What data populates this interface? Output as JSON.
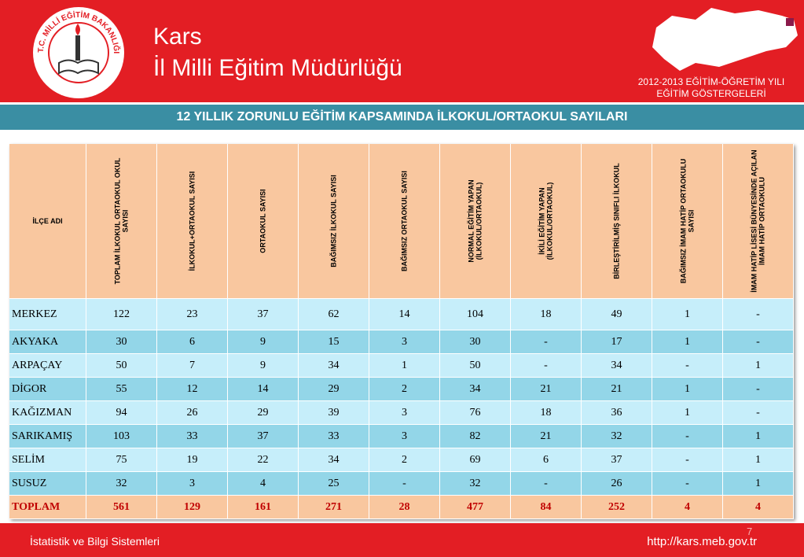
{
  "header": {
    "logo_text": "T.C. MİLLİ EĞİTİM BAKANLIĞI",
    "title_line1": "Kars",
    "title_line2": "İl Milli Eğitim Müdürlüğü",
    "year_line1": "2012-2013 EĞİTİM-ÖĞRETİM YILI",
    "year_line2": "EĞİTİM GÖSTERGELERİ"
  },
  "banner": "12 YILLIK ZORUNLU EĞİTİM KAPSAMINDA İLKOKUL/ORTAOKUL SAYILARI",
  "table": {
    "columns": [
      "İLÇE ADI",
      "TOPLAM İLKOKUL ORTAOKUL OKUL SAYISI",
      "İLKOKUL+ORTAOKUL SAYISI",
      "ORTAOKUL SAYISI",
      "BAĞIMSIZ İLKOKUL SAYISI",
      "BAĞIMSIZ ORTAOKUL SAYISI",
      "NORMAL EĞİTİM YAPAN (İLKOKUL/ORTAOKUL)",
      "İKİLİ EĞİTİM YAPAN (İLKOKUL/ORTAOKUL)",
      "BİRLEŞTİRİLMİŞ SINIFLI İLKOKUL",
      "BAĞIMSIZ İMAM HATİP ORTAOKULU SAYISI",
      "İMAM HATİP LİSESİ BÜNYESİNDE AÇILAN İMAM HATİP ORTAOKULU"
    ],
    "rows": [
      [
        "MERKEZ",
        122,
        23,
        37,
        62,
        14,
        104,
        18,
        49,
        1,
        "-"
      ],
      [
        "AKYAKA",
        30,
        6,
        9,
        15,
        3,
        30,
        "-",
        17,
        1,
        "-"
      ],
      [
        "ARPAÇAY",
        50,
        7,
        9,
        34,
        1,
        50,
        "-",
        34,
        "-",
        1
      ],
      [
        "DİGOR",
        55,
        12,
        14,
        29,
        2,
        34,
        21,
        21,
        1,
        "-"
      ],
      [
        "KAĞIZMAN",
        94,
        26,
        29,
        39,
        3,
        76,
        18,
        36,
        1,
        "-"
      ],
      [
        "SARIKAMIŞ",
        103,
        33,
        37,
        33,
        3,
        82,
        21,
        32,
        "-",
        1
      ],
      [
        "SELİM",
        75,
        19,
        22,
        34,
        2,
        69,
        6,
        37,
        "-",
        1
      ],
      [
        "SUSUZ",
        32,
        3,
        4,
        25,
        "-",
        32,
        "-",
        26,
        "-",
        1
      ],
      [
        "TOPLAM",
        561,
        129,
        161,
        271,
        28,
        477,
        84,
        252,
        4,
        4
      ]
    ]
  },
  "footer": {
    "left": "İstatistik ve Bilgi Sistemleri",
    "right": "http://kars.meb.gov.tr",
    "page": "7"
  }
}
